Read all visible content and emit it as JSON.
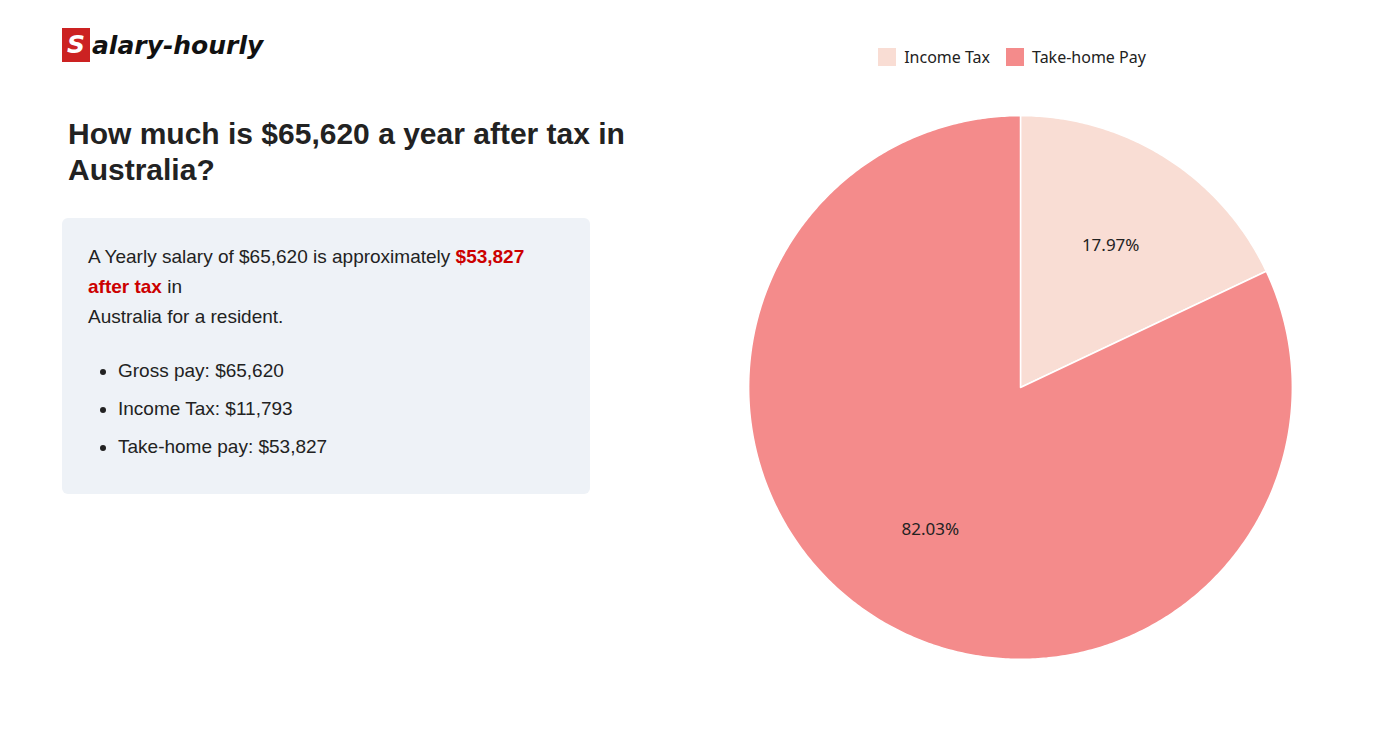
{
  "chart_data": {
    "type": "pie",
    "title": "How much is $65,620 a year after tax in Australia?",
    "categories": [
      "Income Tax",
      "Take-home Pay"
    ],
    "values": [
      17.97,
      82.03
    ],
    "value_labels": [
      "17.97%",
      "82.03%"
    ],
    "colors": [
      "#f9ddd4",
      "#f48b8b"
    ],
    "data_labels": true,
    "legend": "top",
    "annotations": [
      "S",
      "alary-hourly",
      "A Yearly salary of $65,620 is approximately ",
      "$53,827 after tax",
      " in",
      "Australia for a resident.",
      "Gross pay: $65,620",
      "Income Tax: $11,793",
      "Take-home pay: $53,827"
    ]
  }
}
